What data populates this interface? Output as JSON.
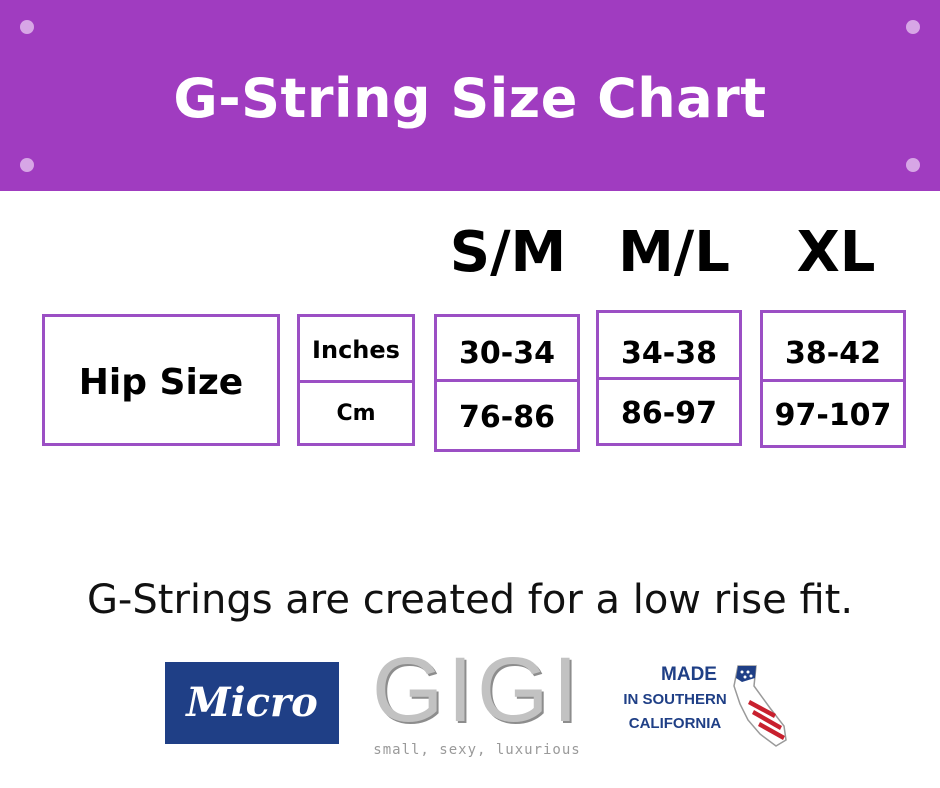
{
  "banner": {
    "title": "G-String Size Chart",
    "color": "#a03cc0"
  },
  "sizes": [
    "S/M",
    "M/L",
    "XL"
  ],
  "table": {
    "row_label": "Hip Size",
    "units": [
      "Inches",
      "Cm"
    ],
    "values": [
      {
        "size": "S/M",
        "inches": "30-34",
        "cm": "76-86"
      },
      {
        "size": "M/L",
        "inches": "34-38",
        "cm": "86-97"
      },
      {
        "size": "XL",
        "inches": "38-42",
        "cm": "97-107"
      }
    ],
    "border_color": "#9b4fc4"
  },
  "note": "G-Strings are created for a low rise fit.",
  "logos": {
    "micro": "Micro",
    "gigi": "GIGI",
    "tagline": "small, sexy, luxurious",
    "made_in": [
      "MADE",
      "IN SOUTHERN",
      "CALIFORNIA"
    ],
    "flag_icon": "california-flag-icon"
  }
}
